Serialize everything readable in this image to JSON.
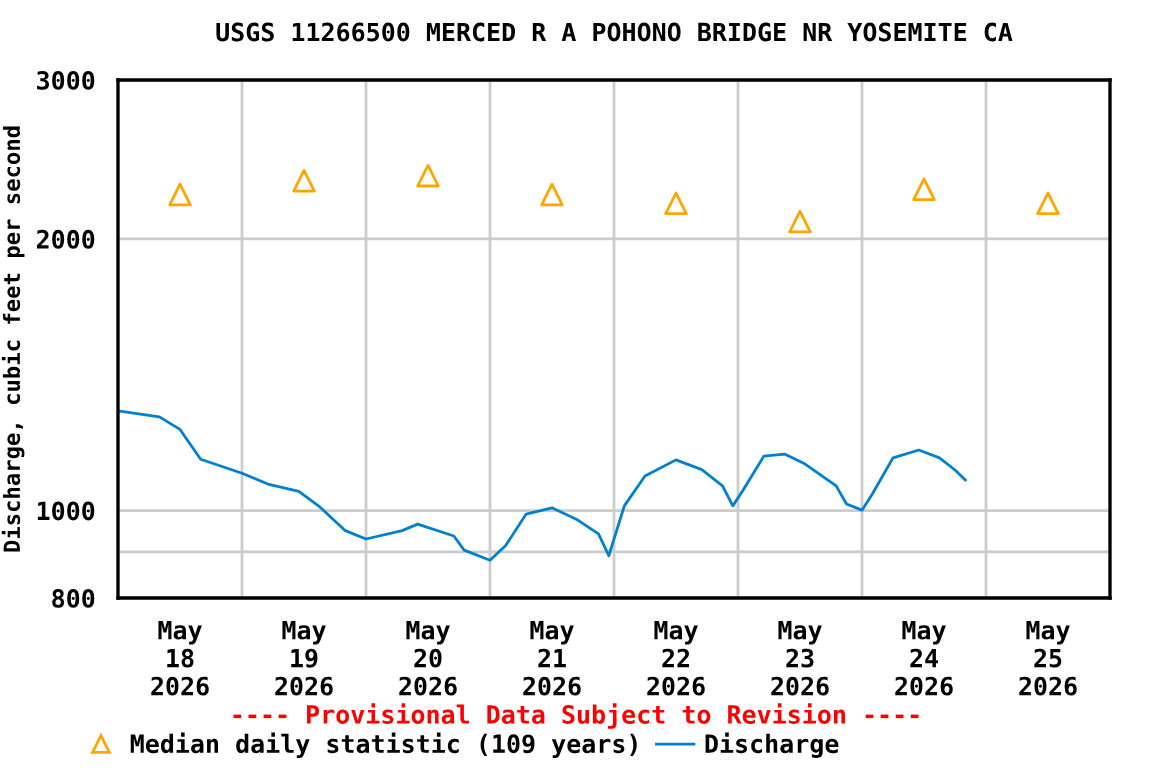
{
  "chart_data": {
    "type": "line",
    "title": "USGS 11266500 MERCED R A POHONO BRIDGE NR YOSEMITE CA",
    "ylabel": "Discharge, cubic feet per second",
    "annotations": [
      "---- Provisional Data Subject to Revision ----"
    ],
    "series": [
      {
        "name": "Median daily statistic (109 years)",
        "type": "scatter",
        "marker": "triangle",
        "color": "#ffa500",
        "x": [
          "2026-05-18T12:00",
          "2026-05-19T12:00",
          "2026-05-20T12:00",
          "2026-05-21T12:00",
          "2026-05-22T12:00",
          "2026-05-23T12:00",
          "2026-05-24T12:00",
          "2026-05-25T12:00"
        ],
        "values": [
          2240,
          2320,
          2350,
          2240,
          2190,
          2090,
          2270,
          2190
        ]
      },
      {
        "name": "Discharge",
        "color": "#0080d0",
        "x": [
          "2026-05-18T00:00",
          "2026-05-18T08:00",
          "2026-05-18T12:00",
          "2026-05-18T16:00",
          "2026-05-19T00:00",
          "2026-05-19T05:00",
          "2026-05-19T11:00",
          "2026-05-19T15:00",
          "2026-05-19T20:00",
          "2026-05-20T00:00",
          "2026-05-20T07:00",
          "2026-05-20T10:00",
          "2026-05-20T17:00",
          "2026-05-20T19:00",
          "2026-05-21T00:00",
          "2026-05-21T03:00",
          "2026-05-21T07:00",
          "2026-05-21T12:00",
          "2026-05-21T17:00",
          "2026-05-21T21:00",
          "2026-05-21T23:00",
          "2026-05-22T02:00",
          "2026-05-22T06:00",
          "2026-05-22T12:00",
          "2026-05-22T17:00",
          "2026-05-22T21:00",
          "2026-05-22T23:00",
          "2026-05-23T01:00",
          "2026-05-23T05:00",
          "2026-05-23T09:00",
          "2026-05-23T13:00",
          "2026-05-23T19:00",
          "2026-05-23T21:00",
          "2026-05-24T00:00",
          "2026-05-24T02:00",
          "2026-05-24T06:00",
          "2026-05-24T11:00",
          "2026-05-24T15:00",
          "2026-05-24T18:00",
          "2026-05-24T20:00"
        ],
        "values": [
          1290,
          1270,
          1230,
          1140,
          1100,
          1070,
          1050,
          1010,
          950,
          930,
          950,
          966,
          937,
          904,
          881,
          914,
          991,
          1007,
          976,
          942,
          891,
          1012,
          1092,
          1138,
          1110,
          1065,
          1012,
          1054,
          1149,
          1155,
          1126,
          1065,
          1017,
          1001,
          1043,
          1144,
          1167,
          1144,
          1109,
          1081
        ]
      }
    ],
    "log": "y",
    "ylim": [
      800,
      3000
    ],
    "yticks": [
      800,
      {
        "value": 900,
        "label": null
      },
      1000,
      2000,
      3000
    ],
    "xlim": [
      "2026-05-18T00:00",
      "2026-05-26T00:00"
    ],
    "xticks": [
      {
        "value": "2026-05-18T12:00",
        "label": "May\n18\n2026"
      },
      {
        "value": "2026-05-19T00:00",
        "label": null
      },
      {
        "value": "2026-05-19T12:00",
        "label": "May\n19\n2026"
      },
      {
        "value": "2026-05-20T00:00",
        "label": null
      },
      {
        "value": "2026-05-20T12:00",
        "label": "May\n20\n2026"
      },
      {
        "value": "2026-05-21T00:00",
        "label": null
      },
      {
        "value": "2026-05-21T12:00",
        "label": "May\n21\n2026"
      },
      {
        "value": "2026-05-22T00:00",
        "label": null
      },
      {
        "value": "2026-05-22T12:00",
        "label": "May\n22\n2026"
      },
      {
        "value": "2026-05-23T00:00",
        "label": null
      },
      {
        "value": "2026-05-23T12:00",
        "label": "May\n23\n2026"
      },
      {
        "value": "2026-05-24T00:00",
        "label": null
      },
      {
        "value": "2026-05-24T12:00",
        "label": "May\n24\n2026"
      },
      {
        "value": "2026-05-25T00:00",
        "label": null
      },
      {
        "value": "2026-05-25T12:00",
        "label": "May\n25\n2026"
      }
    ],
    "grid": true,
    "legend": "bottom"
  }
}
